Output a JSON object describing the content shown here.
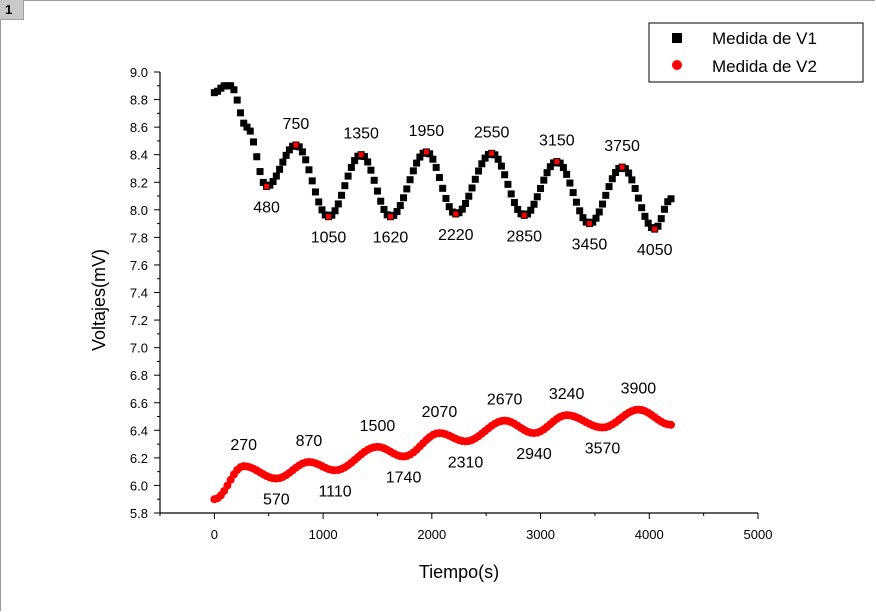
{
  "window": {
    "layer_tab": "1"
  },
  "chart_data": {
    "type": "scatter",
    "xlabel": "Tiempo(s)",
    "ylabel": "Voltajes(mV)",
    "xlim": [
      -500,
      5000
    ],
    "ylim": [
      5.8,
      9.0
    ],
    "xticks": [
      0,
      1000,
      2000,
      3000,
      4000,
      5000
    ],
    "yticks": [
      5.8,
      6.0,
      6.2,
      6.4,
      6.6,
      6.8,
      7.0,
      7.2,
      7.4,
      7.6,
      7.8,
      8.0,
      8.2,
      8.4,
      8.6,
      8.8,
      9.0
    ],
    "legend_position": "top-right",
    "series": [
      {
        "name": "Medida de V1",
        "color": "#000000",
        "marker": "square",
        "keypoints": [
          [
            0,
            8.85
          ],
          [
            100,
            8.9
          ],
          [
            150,
            8.9
          ],
          [
            300,
            8.6
          ],
          [
            480,
            8.17
          ],
          [
            750,
            8.47
          ],
          [
            1050,
            7.95
          ],
          [
            1350,
            8.4
          ],
          [
            1620,
            7.95
          ],
          [
            1950,
            8.42
          ],
          [
            2220,
            7.97
          ],
          [
            2550,
            8.41
          ],
          [
            2850,
            7.96
          ],
          [
            3150,
            8.35
          ],
          [
            3450,
            7.9
          ],
          [
            3750,
            8.31
          ],
          [
            4050,
            7.86
          ],
          [
            4200,
            8.08
          ]
        ]
      },
      {
        "name": "Medida de V2",
        "color": "#ff0000",
        "marker": "circle",
        "keypoints": [
          [
            0,
            5.9
          ],
          [
            270,
            6.14
          ],
          [
            570,
            6.05
          ],
          [
            870,
            6.17
          ],
          [
            1110,
            6.11
          ],
          [
            1500,
            6.28
          ],
          [
            1740,
            6.21
          ],
          [
            2070,
            6.38
          ],
          [
            2310,
            6.32
          ],
          [
            2670,
            6.47
          ],
          [
            2940,
            6.38
          ],
          [
            3240,
            6.51
          ],
          [
            3570,
            6.42
          ],
          [
            3900,
            6.55
          ],
          [
            4200,
            6.44
          ]
        ]
      }
    ],
    "annotations": [
      {
        "text": "750",
        "x": 750,
        "y": 8.47,
        "pos": "above"
      },
      {
        "text": "1350",
        "x": 1350,
        "y": 8.4,
        "pos": "above"
      },
      {
        "text": "1950",
        "x": 1950,
        "y": 8.42,
        "pos": "above"
      },
      {
        "text": "2550",
        "x": 2550,
        "y": 8.41,
        "pos": "above"
      },
      {
        "text": "3150",
        "x": 3150,
        "y": 8.35,
        "pos": "above"
      },
      {
        "text": "3750",
        "x": 3750,
        "y": 8.31,
        "pos": "above"
      },
      {
        "text": "480",
        "x": 480,
        "y": 8.17,
        "pos": "below"
      },
      {
        "text": "1050",
        "x": 1050,
        "y": 7.95,
        "pos": "below"
      },
      {
        "text": "1620",
        "x": 1620,
        "y": 7.95,
        "pos": "below"
      },
      {
        "text": "2220",
        "x": 2220,
        "y": 7.97,
        "pos": "below"
      },
      {
        "text": "2850",
        "x": 2850,
        "y": 7.96,
        "pos": "below"
      },
      {
        "text": "3450",
        "x": 3450,
        "y": 7.9,
        "pos": "below"
      },
      {
        "text": "4050",
        "x": 4050,
        "y": 7.86,
        "pos": "below"
      },
      {
        "text": "270",
        "x": 270,
        "y": 6.14,
        "pos": "above"
      },
      {
        "text": "870",
        "x": 870,
        "y": 6.17,
        "pos": "above"
      },
      {
        "text": "1500",
        "x": 1500,
        "y": 6.28,
        "pos": "above"
      },
      {
        "text": "2070",
        "x": 2070,
        "y": 6.38,
        "pos": "above"
      },
      {
        "text": "2670",
        "x": 2670,
        "y": 6.47,
        "pos": "above"
      },
      {
        "text": "3240",
        "x": 3240,
        "y": 6.51,
        "pos": "above"
      },
      {
        "text": "3900",
        "x": 3900,
        "y": 6.55,
        "pos": "above"
      },
      {
        "text": "570",
        "x": 570,
        "y": 6.05,
        "pos": "below"
      },
      {
        "text": "1110",
        "x": 1110,
        "y": 6.11,
        "pos": "below"
      },
      {
        "text": "1740",
        "x": 1740,
        "y": 6.21,
        "pos": "below"
      },
      {
        "text": "2310",
        "x": 2310,
        "y": 6.32,
        "pos": "below"
      },
      {
        "text": "2940",
        "x": 2940,
        "y": 6.38,
        "pos": "below"
      },
      {
        "text": "3570",
        "x": 3570,
        "y": 6.42,
        "pos": "below"
      }
    ]
  }
}
